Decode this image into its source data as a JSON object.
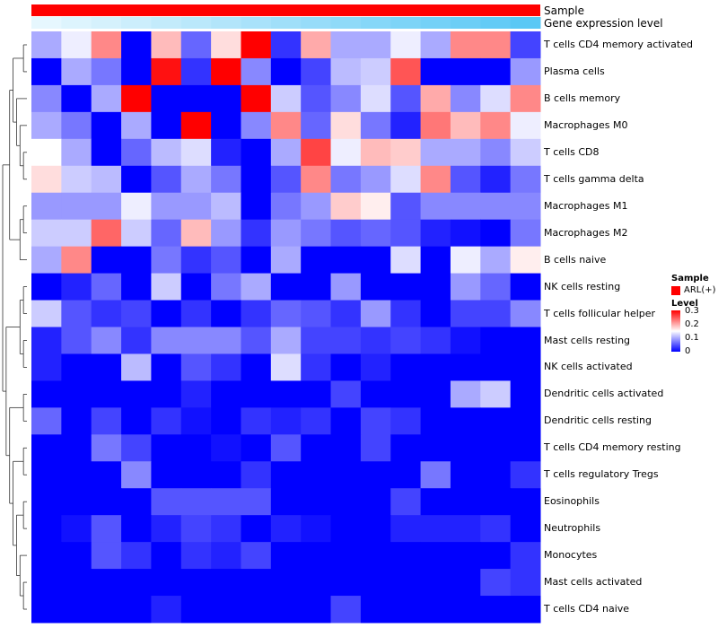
{
  "chart_data": {
    "type": "heatmap",
    "annotation_tracks": [
      {
        "name": "Sample",
        "label": "Sample",
        "color": "#ff0000"
      },
      {
        "name": "Gene expression level",
        "label": "Gene expression level",
        "gradient": [
          "#ffffff",
          "#5ac8f5"
        ]
      }
    ],
    "rows": [
      "T cells CD4 memory activated",
      "Plasma cells",
      "B cells memory",
      "Macrophages M0",
      "T cells CD8",
      "T cells gamma delta",
      "Macrophages M1",
      "Macrophages M2",
      "B cells naive",
      "NK cells resting",
      "T cells follicular helper",
      "Mast cells resting",
      "NK cells activated",
      "Dendritic cells activated",
      "Dendritic cells resting",
      "T cells CD4 memory resting",
      "T cells regulatory  Tregs",
      "Eosinophils",
      "Neutrophils",
      "Monocytes",
      "Mast cells activated",
      "T cells CD4 naive"
    ],
    "n_columns": 17,
    "values": [
      [
        0.1,
        0.14,
        0.22,
        0.0,
        0.19,
        0.06,
        0.17,
        0.3,
        0.03,
        0.2,
        0.1,
        0.1,
        0.14,
        0.1,
        0.22,
        0.22,
        0.04
      ],
      [
        0.0,
        0.1,
        0.07,
        0.0,
        0.29,
        0.03,
        0.3,
        0.08,
        0.0,
        0.04,
        0.11,
        0.12,
        0.25,
        0.0,
        0.0,
        0.0,
        0.09
      ],
      [
        0.08,
        0.0,
        0.1,
        0.3,
        0.0,
        0.0,
        0.0,
        0.3,
        0.12,
        0.05,
        0.08,
        0.13,
        0.05,
        0.2,
        0.08,
        0.13,
        0.22
      ],
      [
        0.1,
        0.07,
        0.0,
        0.1,
        0.0,
        0.3,
        0.0,
        0.08,
        0.22,
        0.06,
        0.17,
        0.07,
        0.02,
        0.23,
        0.19,
        0.22,
        0.14
      ],
      [
        0.15,
        0.1,
        0.0,
        0.06,
        0.11,
        0.13,
        0.02,
        0.0,
        0.1,
        0.26,
        0.14,
        0.19,
        0.18,
        0.1,
        0.1,
        0.08,
        0.12
      ],
      [
        0.17,
        0.12,
        0.11,
        0.0,
        0.05,
        0.1,
        0.07,
        0.0,
        0.05,
        0.22,
        0.07,
        0.09,
        0.13,
        0.22,
        0.05,
        0.02,
        0.07
      ],
      [
        0.09,
        0.09,
        0.09,
        0.14,
        0.09,
        0.09,
        0.11,
        0.0,
        0.07,
        0.09,
        0.18,
        0.16,
        0.05,
        0.08,
        0.08,
        0.08,
        0.08
      ],
      [
        0.12,
        0.12,
        0.24,
        0.12,
        0.06,
        0.19,
        0.09,
        0.03,
        0.09,
        0.07,
        0.05,
        0.06,
        0.05,
        0.02,
        0.01,
        0.0,
        0.07
      ],
      [
        0.1,
        0.22,
        0.0,
        0.0,
        0.07,
        0.03,
        0.05,
        0.0,
        0.1,
        0.0,
        0.0,
        0.0,
        0.13,
        0.0,
        0.14,
        0.1,
        0.16
      ],
      [
        0.0,
        0.02,
        0.06,
        0.0,
        0.12,
        0.0,
        0.07,
        0.1,
        0.0,
        0.0,
        0.09,
        0.0,
        0.0,
        0.0,
        0.09,
        0.06,
        0.0
      ],
      [
        0.12,
        0.05,
        0.03,
        0.04,
        0.0,
        0.03,
        0.0,
        0.03,
        0.06,
        0.05,
        0.03,
        0.09,
        0.03,
        0.0,
        0.04,
        0.04,
        0.08
      ],
      [
        0.02,
        0.05,
        0.08,
        0.03,
        0.08,
        0.08,
        0.08,
        0.05,
        0.1,
        0.04,
        0.04,
        0.03,
        0.04,
        0.03,
        0.01,
        0.0,
        0.0
      ],
      [
        0.02,
        0.0,
        0.0,
        0.11,
        0.0,
        0.05,
        0.03,
        0.0,
        0.13,
        0.03,
        0.0,
        0.02,
        0.0,
        0.0,
        0.0,
        0.0,
        0.0
      ],
      [
        0.0,
        0.0,
        0.0,
        0.0,
        0.0,
        0.02,
        0.0,
        0.0,
        0.0,
        0.0,
        0.04,
        0.0,
        0.0,
        0.0,
        0.1,
        0.12,
        0.0
      ],
      [
        0.06,
        0.0,
        0.04,
        0.0,
        0.03,
        0.01,
        0.0,
        0.03,
        0.02,
        0.03,
        0.0,
        0.04,
        0.03,
        0.0,
        0.0,
        0.0,
        0.0
      ],
      [
        0.0,
        0.0,
        0.07,
        0.04,
        0.0,
        0.0,
        0.01,
        0.0,
        0.05,
        0.0,
        0.0,
        0.04,
        0.0,
        0.0,
        0.0,
        0.0,
        0.0
      ],
      [
        0.0,
        0.0,
        0.0,
        0.08,
        0.0,
        0.0,
        0.0,
        0.03,
        0.0,
        0.0,
        0.0,
        0.0,
        0.0,
        0.07,
        0.0,
        0.0,
        0.03
      ],
      [
        0.0,
        0.0,
        0.0,
        0.0,
        0.05,
        0.05,
        0.05,
        0.05,
        0.0,
        0.0,
        0.0,
        0.0,
        0.04,
        0.0,
        0.0,
        0.0,
        0.0
      ],
      [
        0.0,
        0.01,
        0.05,
        0.0,
        0.02,
        0.04,
        0.03,
        0.0,
        0.02,
        0.01,
        0.0,
        0.0,
        0.02,
        0.02,
        0.02,
        0.03,
        0.0
      ],
      [
        0.0,
        0.0,
        0.05,
        0.03,
        0.0,
        0.03,
        0.02,
        0.04,
        0.0,
        0.0,
        0.0,
        0.0,
        0.0,
        0.0,
        0.0,
        0.0,
        0.03
      ],
      [
        0.0,
        0.0,
        0.0,
        0.0,
        0.0,
        0.0,
        0.0,
        0.0,
        0.0,
        0.0,
        0.0,
        0.0,
        0.0,
        0.0,
        0.0,
        0.04,
        0.03
      ],
      [
        0.0,
        0.0,
        0.0,
        0.0,
        0.02,
        0.0,
        0.0,
        0.0,
        0.0,
        0.0,
        0.04,
        0.0,
        0.0,
        0.0,
        0.0,
        0.0,
        0.0
      ]
    ],
    "color_scale": {
      "min": 0,
      "mid": 0.15,
      "max": 0.3,
      "low": "#0000ff",
      "mid_color": "#ffffff",
      "high": "#ff0000"
    },
    "dendrogram": "rows",
    "legend": {
      "sample_title": "Sample",
      "sample_entry": "ARL(+)",
      "sample_color": "#ff0000",
      "level_title": "Level",
      "level_ticks": [
        "0.3",
        "0.2",
        "0.1",
        "0"
      ]
    }
  }
}
